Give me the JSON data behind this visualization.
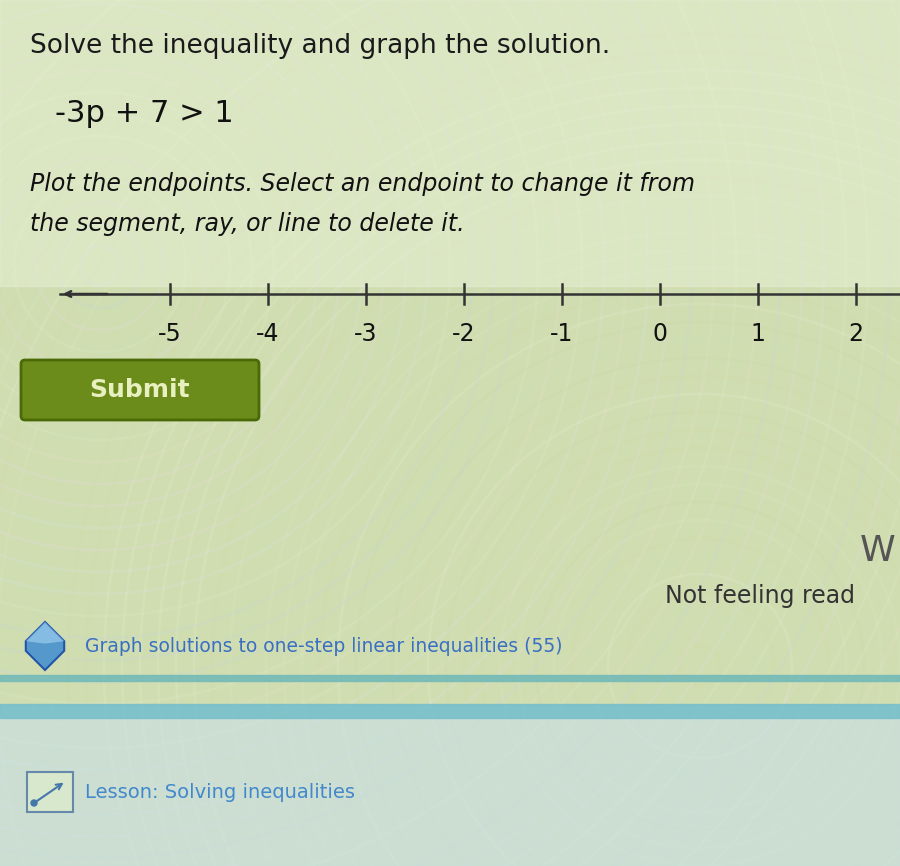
{
  "title": "Solve the inequality and graph the solution.",
  "equation": "-3p + 7 > 1",
  "instruction_line1": "Plot the endpoints. Select an endpoint to change it from",
  "instruction_line2": "the segment, ray, or line to delete it.",
  "number_line_ticks": [
    -5,
    -4,
    -3,
    -2,
    -1,
    0,
    1,
    2
  ],
  "submit_button_text": "Submit",
  "submit_button_color": "#6b8c1a",
  "submit_button_border_color": "#4a6a08",
  "footer_link_text": "Graph solutions to one-step linear inequalities (55)",
  "footer_link_color": "#3a6fc4",
  "footer_lesson_text": "Lesson: Solving inequalities",
  "footer_lesson_color": "#3a6fc4",
  "not_feeling_text": "Not feeling read",
  "w_text": "W",
  "bg_main": "#d8e4b8",
  "bg_upper_light": "#e8f0d0",
  "title_fontsize": 19,
  "equation_fontsize": 22,
  "instruction_fontsize": 17,
  "tick_fontsize": 17,
  "diamond_face": "#5599cc",
  "diamond_edge": "#2255aa",
  "diamond_inner": "#99ccee",
  "teal_bar_color": "#70b8b8",
  "blue_bar_color": "#90ccd8",
  "lesson_text_color": "#4488cc"
}
